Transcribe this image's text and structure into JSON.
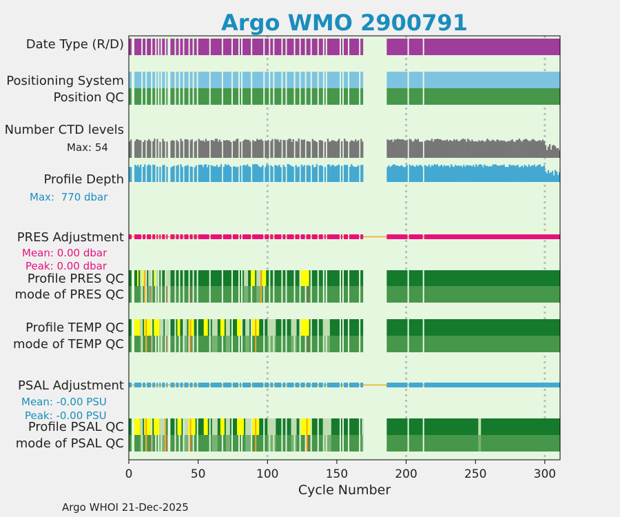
{
  "colors": {
    "background": "#f0f0f0",
    "plot_bg": "#e6f7e0",
    "date_type": "#a03c9b",
    "positioning": "#7ec4e1",
    "position_qc": "#46974a",
    "ctd_levels": "#777777",
    "profile_depth": "#43a8d2",
    "pres_adj": "#e8117b",
    "psal_adj": "#43a8d2",
    "adj_line": "#ecb845",
    "qc_good": "#157a2c",
    "qc_mode": "#46974a",
    "qc_light": "#c0ddb0",
    "qc_yellow": "#ffff00",
    "qc_orange": "#f5a623",
    "qc_red": "#cf3a2a",
    "title": "#1a8dbd",
    "grid": "#bbbbbb"
  },
  "chart_data": {
    "type": "bar",
    "title": "Argo WMO 2900791",
    "xlabel": "Cycle Number",
    "xlim": [
      0,
      311
    ],
    "xticks": [
      0,
      50,
      100,
      150,
      200,
      250,
      300
    ],
    "grid_x": [
      100,
      200,
      300
    ],
    "coverage": [
      [
        0,
        169
      ],
      [
        186,
        311
      ]
    ],
    "gaps": [
      2,
      3,
      9,
      12,
      16,
      19,
      21,
      23,
      26,
      28,
      29,
      33,
      36,
      39,
      43,
      46,
      49,
      58,
      67,
      74,
      79,
      81,
      88,
      97,
      101,
      104,
      110,
      113,
      119,
      123,
      127,
      131,
      136,
      140,
      142,
      152,
      154,
      158,
      166,
      201,
      212
    ],
    "rows": [
      {
        "key": "date_type",
        "label": "Date Type (R/D)"
      },
      {
        "key": "positioning",
        "label": "Positioning System"
      },
      {
        "key": "position_qc",
        "label": "Position QC"
      },
      {
        "key": "ctd_levels",
        "label": "Number CTD levels",
        "note": "Max: 54",
        "max_value": 54
      },
      {
        "key": "profile_depth",
        "label": "Profile Depth",
        "note": "Max:  770 dbar",
        "max_value": 770
      },
      {
        "key": "pres_adj",
        "label": "PRES Adjustment",
        "mean": "Mean: 0.00 dbar",
        "peak": "Peak: 0.00 dbar"
      },
      {
        "key": "pres_qc",
        "label": "Profile PRES QC"
      },
      {
        "key": "pres_mode",
        "label": "mode of PRES QC"
      },
      {
        "key": "temp_qc",
        "label": "Profile TEMP QC"
      },
      {
        "key": "temp_mode",
        "label": "mode of TEMP QC"
      },
      {
        "key": "psal_adj",
        "label": "PSAL Adjustment",
        "mean": "Mean: -0.00 PSU",
        "peak": "Peak: -0.00 PSU"
      },
      {
        "key": "psal_qc",
        "label": "Profile PSAL QC"
      },
      {
        "key": "psal_mode",
        "label": "mode of PSAL QC"
      }
    ],
    "qc_flags": {
      "pres": {
        "light": [
          [
            8,
            9
          ],
          [
            14,
            16
          ],
          [
            20,
            21
          ],
          [
            27,
            30
          ],
          [
            83,
            86
          ],
          [
            92,
            95
          ]
        ],
        "yellow": [
          [
            6,
            7
          ],
          [
            10,
            12
          ],
          [
            18,
            19
          ],
          [
            88,
            91
          ],
          [
            96,
            99
          ],
          [
            124,
            130
          ]
        ],
        "orange": [
          [
            11,
            12
          ],
          [
            95,
            96
          ]
        ]
      },
      "temp": {
        "light": [
          [
            8,
            10
          ],
          [
            22,
            25
          ],
          [
            27,
            29
          ],
          [
            40,
            42
          ],
          [
            60,
            64
          ],
          [
            70,
            73
          ],
          [
            84,
            87
          ],
          [
            100,
            106
          ],
          [
            117,
            121
          ],
          [
            140,
            145
          ]
        ],
        "yellow": [
          [
            4,
            8
          ],
          [
            11,
            16
          ],
          [
            18,
            22
          ],
          [
            35,
            37
          ],
          [
            43,
            47
          ],
          [
            54,
            57
          ],
          [
            66,
            69
          ],
          [
            78,
            81
          ],
          [
            89,
            94
          ],
          [
            124,
            130
          ]
        ],
        "orange": [
          [
            12,
            13
          ],
          [
            44,
            45
          ],
          [
            91,
            92
          ]
        ]
      },
      "psal": {
        "light": [
          [
            8,
            10
          ],
          [
            22,
            26
          ],
          [
            40,
            43
          ],
          [
            60,
            64
          ],
          [
            70,
            73
          ],
          [
            84,
            88
          ],
          [
            100,
            106
          ],
          [
            117,
            121
          ],
          [
            140,
            146
          ],
          [
            168,
            169
          ],
          [
            252,
            254
          ]
        ],
        "yellow": [
          [
            4,
            8
          ],
          [
            11,
            16
          ],
          [
            18,
            22
          ],
          [
            35,
            38
          ],
          [
            43,
            48
          ],
          [
            54,
            57
          ],
          [
            66,
            69
          ],
          [
            78,
            83
          ],
          [
            89,
            94
          ],
          [
            124,
            131
          ]
        ],
        "orange": [
          [
            12,
            13
          ],
          [
            26,
            27
          ],
          [
            44,
            45
          ],
          [
            91,
            92
          ],
          [
            128,
            129
          ]
        ]
      }
    }
  },
  "footer": "Argo WHOI 21-Dec-2025"
}
